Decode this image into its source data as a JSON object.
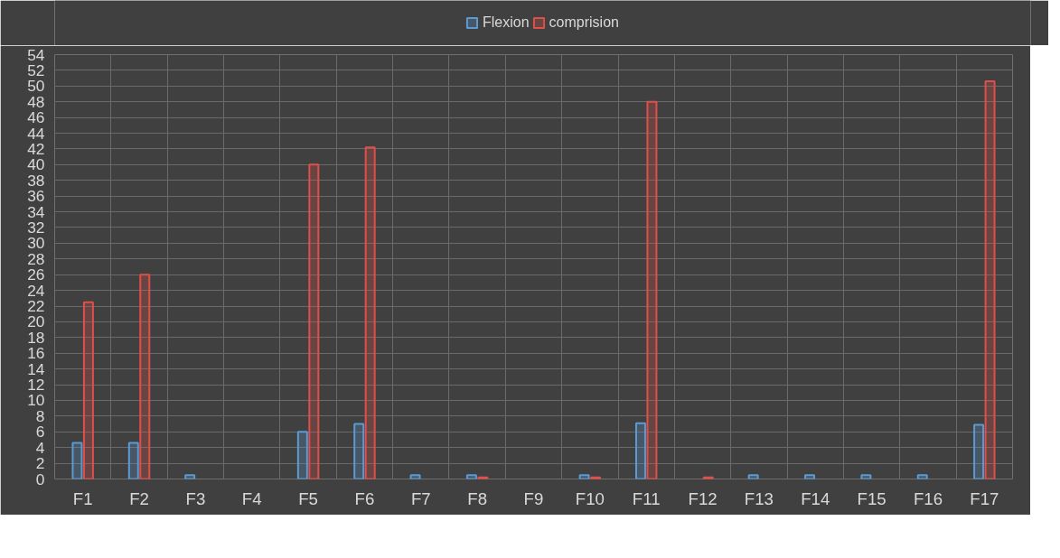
{
  "chart_data": {
    "type": "bar",
    "categories": [
      "F1",
      "F2",
      "F3",
      "F4",
      "F5",
      "F6",
      "F7",
      "F8",
      "F9",
      "F10",
      "F11",
      "F12",
      "F13",
      "F14",
      "F15",
      "F16",
      "F17"
    ],
    "series": [
      {
        "name": "Flexion",
        "color": "#5b9bd5",
        "values": [
          4.6,
          4.6,
          0.5,
          null,
          6.0,
          7.0,
          0.5,
          0.5,
          null,
          0.5,
          7.1,
          null,
          0.5,
          0.5,
          0.5,
          0.5,
          6.9
        ]
      },
      {
        "name": "comprision",
        "color": "#e0504a",
        "values": [
          22.5,
          26.0,
          null,
          null,
          40.0,
          42.2,
          null,
          0.2,
          null,
          0.2,
          48.0,
          0.2,
          null,
          null,
          null,
          null,
          50.6
        ]
      }
    ],
    "ylim": [
      0,
      54
    ],
    "yticks": [
      0,
      2,
      4,
      6,
      8,
      10,
      12,
      14,
      16,
      18,
      20,
      22,
      24,
      26,
      28,
      30,
      32,
      34,
      36,
      38,
      40,
      42,
      44,
      46,
      48,
      50,
      52,
      54
    ],
    "grid": true,
    "legend": "top"
  }
}
